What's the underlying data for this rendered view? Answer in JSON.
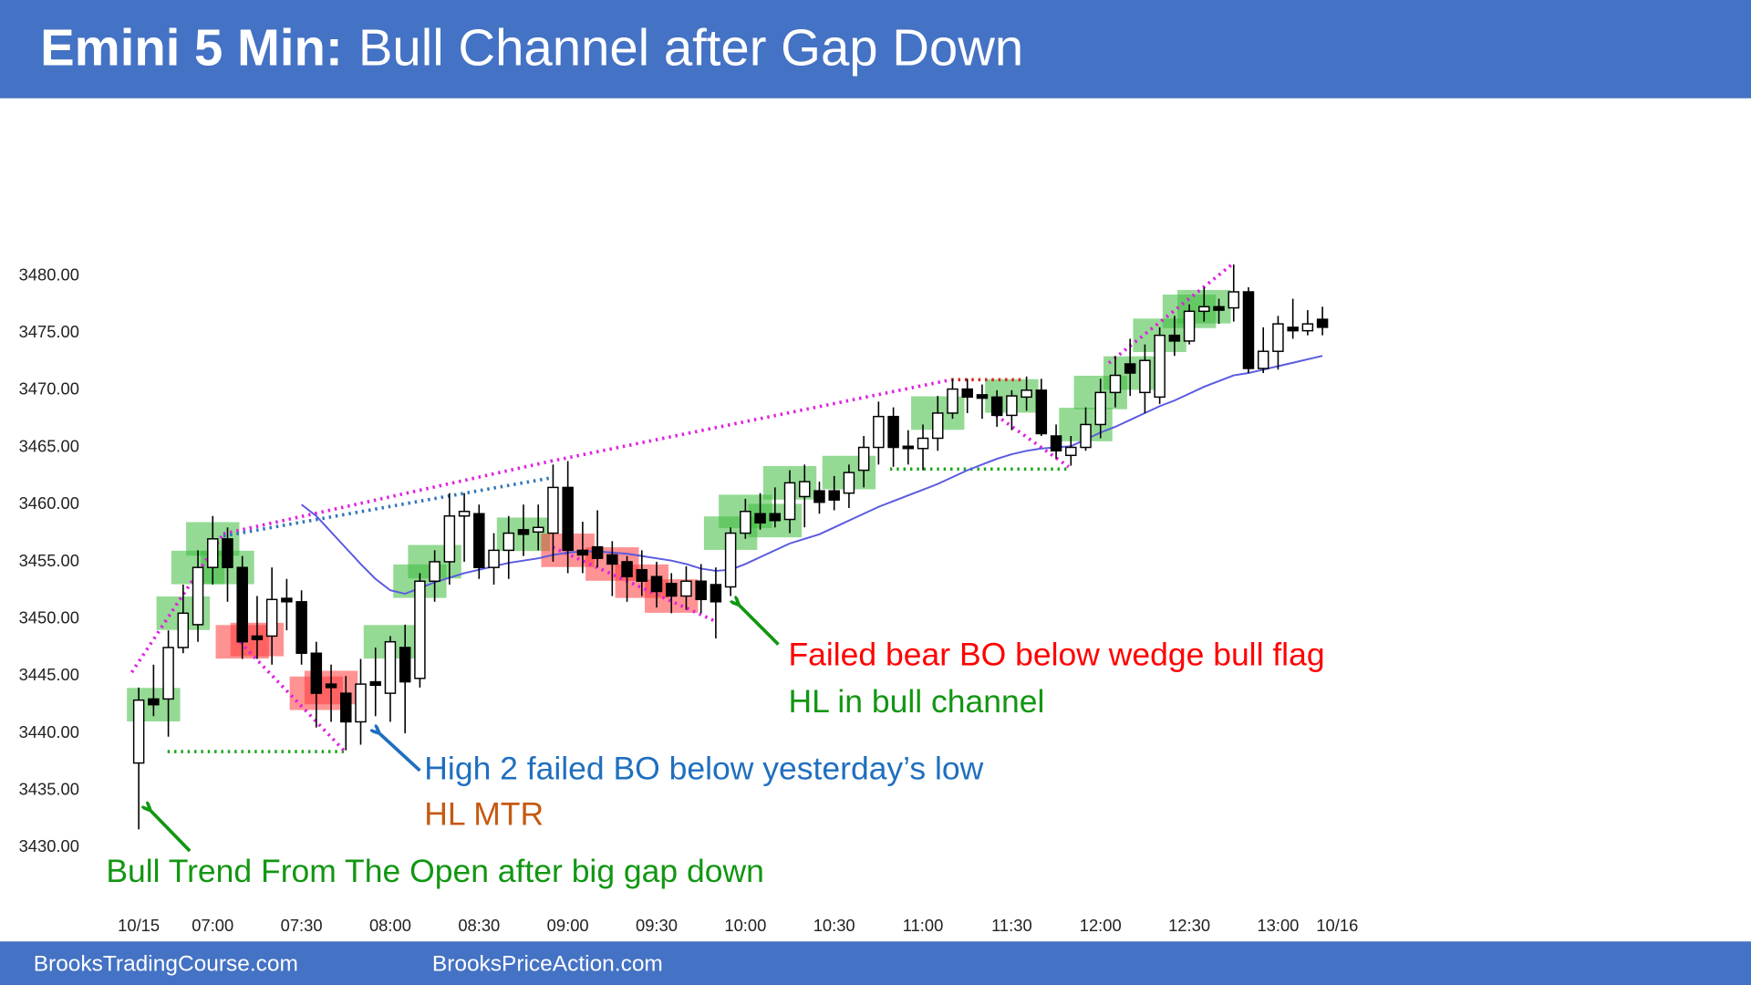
{
  "chart_data": {
    "type": "candlestick",
    "title_bold": "Emini 5 Min:",
    "title": "Bull Channel after Gap Down",
    "footer": [
      "BrooksTradingCourse.com",
      "BrooksPriceAction.com"
    ],
    "xlim": [
      -5,
      95
    ],
    "xticks": [
      {
        "value": 0,
        "label": "10/15"
      },
      {
        "value": 5,
        "label": "07:00"
      },
      {
        "value": 11,
        "label": "07:30"
      },
      {
        "value": 17,
        "label": "08:00"
      },
      {
        "value": 23,
        "label": "08:30"
      },
      {
        "value": 29,
        "label": "09:00"
      },
      {
        "value": 35,
        "label": "09:30"
      },
      {
        "value": 41,
        "label": "10:00"
      },
      {
        "value": 47,
        "label": "10:30"
      },
      {
        "value": 53,
        "label": "11:00"
      },
      {
        "value": 59,
        "label": "11:30"
      },
      {
        "value": 65,
        "label": "12:00"
      },
      {
        "value": 71,
        "label": "12:30"
      },
      {
        "value": 77,
        "label": "13:00"
      },
      {
        "value": 81,
        "label": "10/16"
      }
    ],
    "ylim": [
      3425,
      3495
    ],
    "yticks": [
      {
        "value": 3430,
        "label": "3430.00"
      },
      {
        "value": 3435,
        "label": "3435.00"
      },
      {
        "value": 3440,
        "label": "3440.00"
      },
      {
        "value": 3445,
        "label": "3445.00"
      },
      {
        "value": 3450,
        "label": "3450.00"
      },
      {
        "value": 3455,
        "label": "3455.00"
      },
      {
        "value": 3460,
        "label": "3460.00"
      },
      {
        "value": 3465,
        "label": "3465.00"
      },
      {
        "value": 3470,
        "label": "3470.00"
      },
      {
        "value": 3475,
        "label": "3475.00"
      },
      {
        "value": 3480,
        "label": "3480.00"
      }
    ],
    "open": [
      3437.4,
      3443,
      3443,
      3447.5,
      3449.5,
      3454.5,
      3457,
      3454.5,
      3448.5,
      3448.5,
      3451.8,
      3451.5,
      3447,
      3444.3,
      3443.5,
      3441,
      3444.5,
      3443.5,
      3447.5,
      3444.8,
      3453.3,
      3455,
      3459,
      3459.2,
      3454.5,
      3456,
      3457.8,
      3457.6,
      3457.5,
      3461.5,
      3456,
      3456.3,
      3455.6,
      3455,
      3454.3,
      3453.7,
      3453.1,
      3452,
      3453.3,
      3453,
      3452.8,
      3457.5,
      3459.2,
      3459.2,
      3458.7,
      3460.7,
      3461.2,
      3461.2,
      3461,
      3463,
      3465,
      3467.7,
      3465.1,
      3464.9,
      3465.8,
      3468,
      3470.1,
      3469.6,
      3469.4,
      3467.8,
      3469.4,
      3470,
      3466,
      3464.3,
      3465,
      3467,
      3469.8,
      3472.3,
      3469.8,
      3469.4,
      3474.8,
      3474.3,
      3476.9,
      3477.3,
      3477.2,
      3478.6,
      3471.9,
      3473.4,
      3475.5,
      3475.2,
      3476.2
    ],
    "high": [
      3444,
      3446,
      3449,
      3453,
      3456,
      3459,
      3458,
      3455.5,
      3452,
      3454.5,
      3453.5,
      3452.5,
      3448,
      3446,
      3445,
      3446.5,
      3447.5,
      3448.5,
      3449.5,
      3454,
      3456,
      3461,
      3461,
      3460,
      3457.5,
      3459,
      3460,
      3460,
      3463.5,
      3463.8,
      3458.5,
      3459.5,
      3456.8,
      3455.5,
      3456,
      3455,
      3454,
      3454.6,
      3454.8,
      3454.5,
      3458,
      3460.5,
      3461,
      3461.5,
      3463,
      3463.5,
      3462,
      3462.5,
      3463.5,
      3466,
      3469,
      3468.5,
      3466.5,
      3467,
      3469.5,
      3471,
      3471,
      3470.5,
      3470,
      3470,
      3471.2,
      3471,
      3467,
      3466,
      3468.5,
      3471,
      3473,
      3474.5,
      3474,
      3475.5,
      3476.5,
      3477.5,
      3479,
      3478,
      3481,
      3479,
      3475.5,
      3476.5,
      3478,
      3477,
      3477.3
    ],
    "low": [
      3431.6,
      3441.5,
      3439.7,
      3447,
      3448,
      3453,
      3451.5,
      3446.5,
      3446.5,
      3446,
      3449,
      3446,
      3440.5,
      3441,
      3438.5,
      3439,
      3441.5,
      3441,
      3440,
      3444,
      3451.5,
      3453,
      3455,
      3453.5,
      3453,
      3453.5,
      3455.5,
      3456,
      3455,
      3454,
      3454,
      3454.5,
      3452,
      3451.5,
      3452,
      3451,
      3450.5,
      3450.8,
      3450.5,
      3448.3,
      3452,
      3457,
      3457.8,
      3458,
      3457.5,
      3458,
      3459.2,
      3459.5,
      3459.7,
      3461.5,
      3463.5,
      3463.3,
      3463.5,
      3463,
      3464.7,
      3467.5,
      3468,
      3467.5,
      3466.8,
      3466.5,
      3468.2,
      3466,
      3464,
      3463.4,
      3464.7,
      3465.8,
      3468.5,
      3469.5,
      3468,
      3468.8,
      3473,
      3474,
      3476,
      3475.8,
      3476,
      3471.5,
      3471.5,
      3471.8,
      3474.5,
      3474.8,
      3474.8
    ],
    "close": [
      3442.9,
      3442.5,
      3447.5,
      3450.5,
      3454.5,
      3457,
      3454.5,
      3448,
      3448.2,
      3451.7,
      3451.5,
      3447,
      3443.5,
      3444,
      3441,
      3444.3,
      3444.2,
      3448,
      3444.5,
      3453.3,
      3455,
      3459,
      3459.4,
      3454.5,
      3456,
      3457.5,
      3457.4,
      3458,
      3461.5,
      3456,
      3455.6,
      3455.3,
      3454.8,
      3453.7,
      3453.3,
      3452.4,
      3452,
      3453.3,
      3451.7,
      3451.5,
      3457.5,
      3459.4,
      3458.4,
      3458.6,
      3461.9,
      3462,
      3460.2,
      3460.4,
      3462.8,
      3465,
      3467.7,
      3465,
      3464.9,
      3465.8,
      3468,
      3470.1,
      3469.4,
      3469.3,
      3467.8,
      3469.5,
      3470,
      3466.2,
      3464.7,
      3465,
      3467,
      3469.8,
      3471.3,
      3471.5,
      3472.6,
      3474.8,
      3474.3,
      3476.9,
      3477.3,
      3477,
      3478.6,
      3471.9,
      3473.4,
      3475.8,
      3475.2,
      3475.8,
      3475.5
    ],
    "ema": {
      "color": "#5a5ae0",
      "values": [
        null,
        null,
        null,
        null,
        null,
        null,
        null,
        null,
        null,
        null,
        null,
        3460,
        3459,
        3457.6,
        3456.2,
        3454.8,
        3453.5,
        3452.5,
        3452.2,
        3452.7,
        3453.2,
        3453.6,
        3454.0,
        3454.3,
        3454.6,
        3454.9,
        3455.1,
        3455.3,
        3455.6,
        3455.8,
        3455.9,
        3455.9,
        3455.8,
        3455.7,
        3455.5,
        3455.3,
        3455.1,
        3454.8,
        3454.4,
        3454.2,
        3454.3,
        3454.8,
        3455.4,
        3456.0,
        3456.6,
        3457.0,
        3457.4,
        3458.0,
        3458.6,
        3459.2,
        3459.8,
        3460.3,
        3460.8,
        3461.3,
        3461.8,
        3462.4,
        3463.0,
        3463.5,
        3464.0,
        3464.4,
        3464.7,
        3464.9,
        3465.0,
        3465.1,
        3465.7,
        3466.3,
        3466.8,
        3467.4,
        3468.0,
        3468.6,
        3469.1,
        3469.7,
        3470.3,
        3470.8,
        3471.3,
        3471.5,
        3471.8,
        3472.1,
        3472.4,
        3472.7,
        3473.0
      ]
    },
    "bull_signals": {
      "color": "#3cbc3c",
      "bars": [
        1,
        3,
        4,
        5,
        6,
        17,
        19,
        20,
        26,
        40,
        41,
        43,
        44,
        48,
        54,
        59,
        64,
        65,
        67,
        69,
        71,
        72
      ]
    },
    "bear_signals": {
      "color": "#ff3b3b",
      "bars": [
        7,
        8,
        12,
        13,
        29,
        32,
        34,
        36
      ]
    },
    "annotations": [
      {
        "text": "Bull Trend From The Open after big gap down",
        "color": "#129612"
      },
      {
        "text": "High 2 failed BO below yesterday’s low",
        "color": "#1f6fbf"
      },
      {
        "text": "HL MTR",
        "color": "#c55a11"
      },
      {
        "text": "Failed bear BO below wedge bull flag",
        "color": "#ff0000"
      },
      {
        "text": "HL in bull channel",
        "color": "#129612"
      }
    ]
  }
}
